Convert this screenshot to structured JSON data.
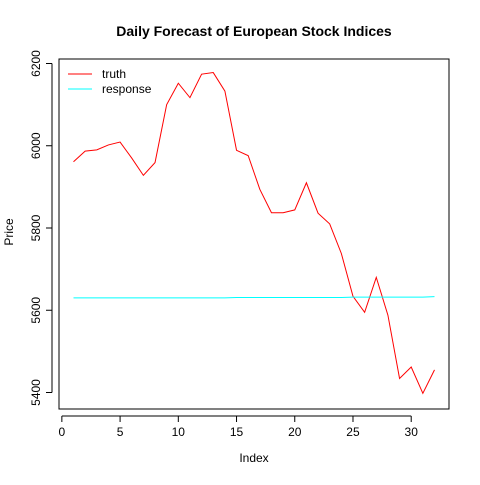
{
  "chart_data": {
    "type": "line",
    "title": "Daily Forecast of European Stock Indices",
    "xlabel": "Index",
    "ylabel": "Price",
    "xlim": [
      0,
      32
    ],
    "ylim": [
      5400,
      6200
    ],
    "x_ticks": [
      0,
      5,
      10,
      15,
      20,
      25,
      30
    ],
    "y_ticks": [
      5400,
      5600,
      5800,
      6000,
      6200
    ],
    "grid": false,
    "legend_position": "top-left",
    "x": [
      1,
      2,
      3,
      4,
      5,
      6,
      7,
      8,
      9,
      10,
      11,
      12,
      13,
      14,
      15,
      16,
      17,
      18,
      19,
      20,
      21,
      22,
      23,
      24,
      25,
      26,
      27,
      28,
      29,
      30,
      31,
      32
    ],
    "series": [
      {
        "name": "truth",
        "color": "#ff0000",
        "values": [
          5961,
          5987,
          5990,
          6002,
          6009,
          5970,
          5928,
          5959,
          6100,
          6152,
          6117,
          6174,
          6178,
          6133,
          5989,
          5976,
          5894,
          5837,
          5837,
          5844,
          5910,
          5836,
          5810,
          5738,
          5634,
          5595,
          5680,
          5588,
          5434,
          5462,
          5398,
          5455
        ]
      },
      {
        "name": "response",
        "color": "#00ffff",
        "values": [
          5630,
          5630,
          5630,
          5630,
          5630,
          5630,
          5630,
          5630,
          5630,
          5630,
          5630,
          5630,
          5630,
          5630,
          5631,
          5631,
          5631,
          5631,
          5631,
          5631,
          5631,
          5631,
          5631,
          5631,
          5632,
          5632,
          5632,
          5632,
          5632,
          5632,
          5632,
          5633
        ]
      }
    ]
  }
}
